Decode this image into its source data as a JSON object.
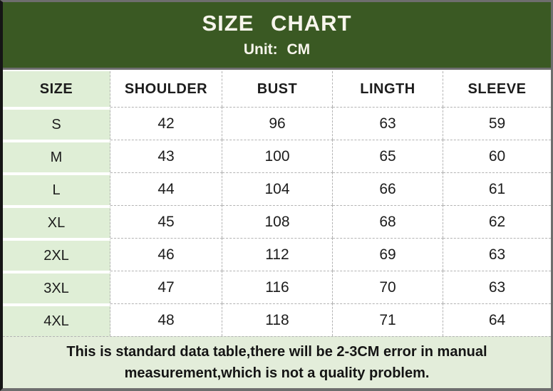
{
  "banner": {
    "title": "SIZE CHART",
    "subtitle": "Unit: CM"
  },
  "chart_data": {
    "type": "table",
    "title": "SIZE CHART",
    "unit": "CM",
    "columns": [
      "SIZE",
      "SHOULDER",
      "BUST",
      "LINGTH",
      "SLEEVE"
    ],
    "rows": [
      [
        "S",
        "42",
        "96",
        "63",
        "59"
      ],
      [
        "M",
        "43",
        "100",
        "65",
        "60"
      ],
      [
        "L",
        "44",
        "104",
        "66",
        "61"
      ],
      [
        "XL",
        "45",
        "108",
        "68",
        "62"
      ],
      [
        "2XL",
        "46",
        "112",
        "69",
        "63"
      ],
      [
        "3XL",
        "47",
        "116",
        "70",
        "63"
      ],
      [
        "4XL",
        "48",
        "118",
        "71",
        "64"
      ]
    ]
  },
  "footer": {
    "note": "This is standard data table,there will be 2-3CM error in manual measurement,which is not a quality problem.",
    "note_lines": [
      "This is standard data table,there will be 2-3CM error in manual",
      "measurement,which is not a quality problem."
    ]
  },
  "colors": {
    "banner_bg": "#3a5923",
    "size_column_bg": "#dfeed6",
    "footer_bg": "#e3edda",
    "frame_gray": "#6e6e6e",
    "grid_dash": "#b3b3b3"
  }
}
